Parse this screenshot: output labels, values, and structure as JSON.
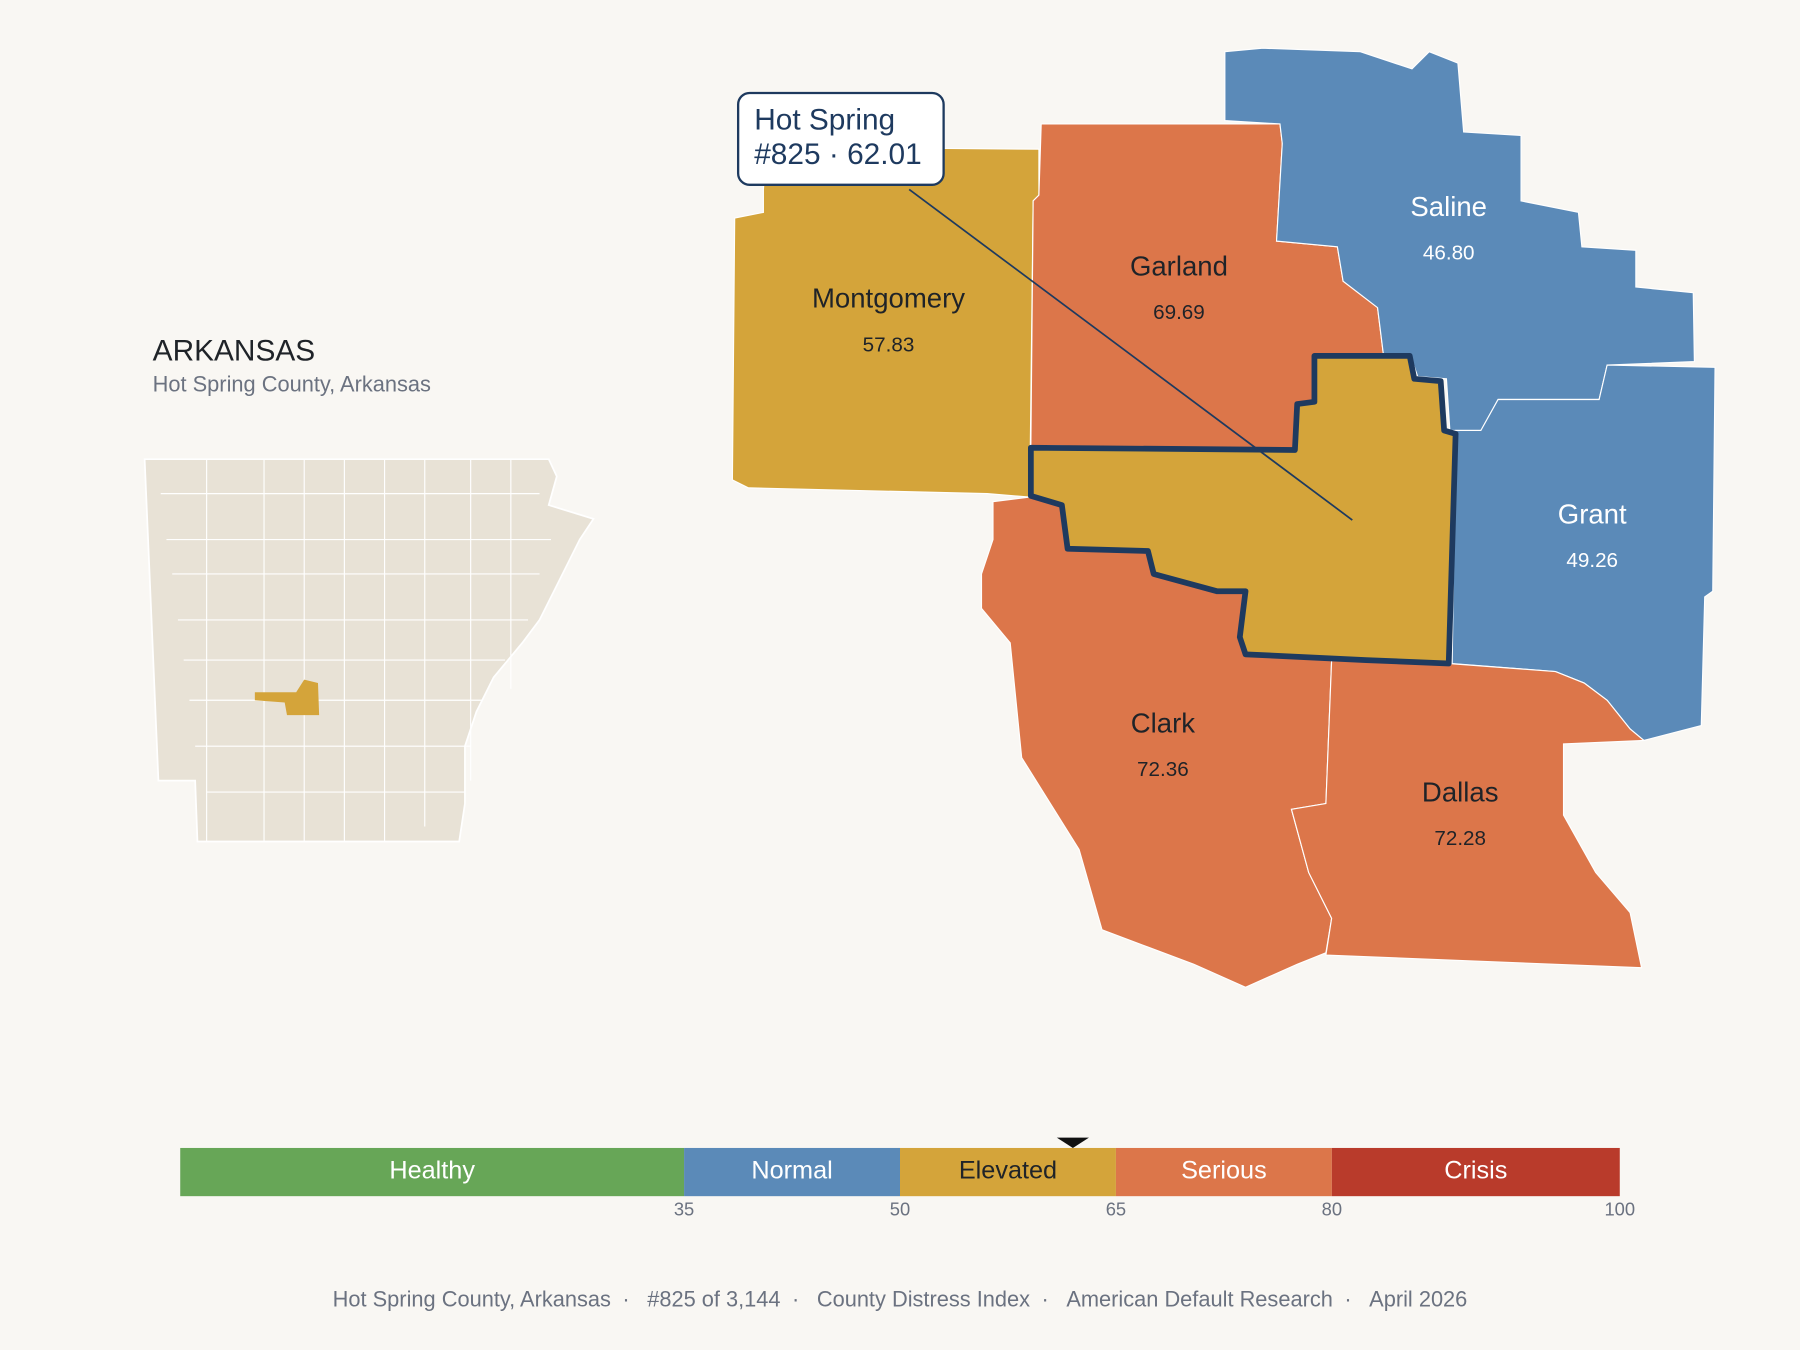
{
  "header": {
    "title": "ARKANSAS",
    "subtitle": "Hot Spring County, Arkansas"
  },
  "callout": {
    "name": "Hot Spring",
    "rank": "#825",
    "separator": "·",
    "score": 62.01
  },
  "counties": [
    {
      "name": "Montgomery",
      "value": 57.83,
      "label": "57.83"
    },
    {
      "name": "Garland",
      "value": 69.69,
      "label": "69.69"
    },
    {
      "name": "Saline",
      "value": 46.8,
      "label": "46.80"
    },
    {
      "name": "Grant",
      "value": 49.26,
      "label": "49.26"
    },
    {
      "name": "Clark",
      "value": 72.36,
      "label": "72.36"
    },
    {
      "name": "Dallas",
      "value": 72.28,
      "label": "72.28"
    }
  ],
  "scale": {
    "lim": [
      0,
      100
    ],
    "ticks": [
      35,
      50,
      65,
      80,
      100
    ],
    "bands": [
      {
        "label": "Healthy",
        "color": "#67a657"
      },
      {
        "label": "Normal",
        "color": "#5b8ab8"
      },
      {
        "label": "Elevated",
        "color": "#d4a43a"
      },
      {
        "label": "Serious",
        "color": "#dc764a"
      },
      {
        "label": "Crisis",
        "color": "#b93b2b"
      }
    ]
  },
  "footer": {
    "separator": "·",
    "items": [
      "Hot Spring County, Arkansas",
      "#825 of 3,144",
      "County Distress Index",
      "American Default Research",
      "April 2026"
    ]
  }
}
